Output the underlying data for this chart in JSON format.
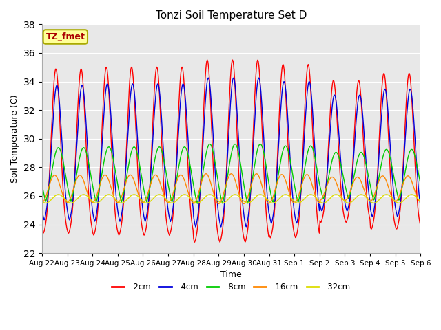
{
  "title": "Tonzi Soil Temperature Set D",
  "xlabel": "Time",
  "ylabel": "Soil Temperature (C)",
  "ylim": [
    22,
    38
  ],
  "yticks": [
    22,
    24,
    26,
    28,
    30,
    32,
    34,
    36,
    38
  ],
  "annotation_text": "TZ_fmet",
  "annotation_color": "#AA0000",
  "annotation_bg": "#FFFF99",
  "annotation_border": "#AAAA00",
  "series_colors": [
    "#FF0000",
    "#0000DD",
    "#00CC00",
    "#FF8800",
    "#DDDD00"
  ],
  "series_labels": [
    "-2cm",
    "-4cm",
    "-8cm",
    "-16cm",
    "-32cm"
  ],
  "bg_color": "#E8E8E8",
  "x_tick_labels": [
    "Aug 22",
    "Aug 23",
    "Aug 24",
    "Aug 25",
    "Aug 26",
    "Aug 27",
    "Aug 28",
    "Aug 29",
    "Aug 30",
    "Aug 31",
    "Sep 1",
    "Sep 2",
    "Sep 3",
    "Sep 4",
    "Sep 5",
    "Sep 6"
  ]
}
